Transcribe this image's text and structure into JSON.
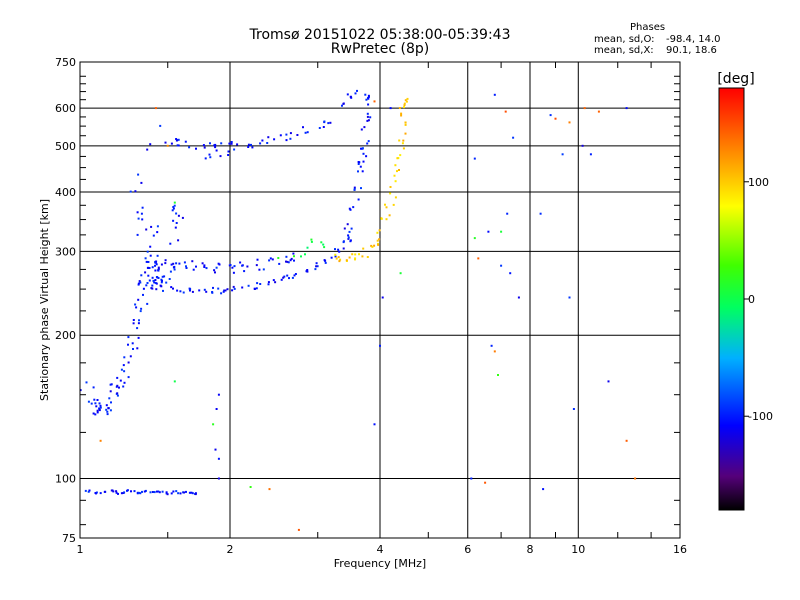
{
  "chart_data": {
    "type": "scatter",
    "title": "Tromsø 20151022 05:38:00-05:39:43",
    "subtitle": "RwPretec (8p)",
    "xlabel": "Frequency [MHz]",
    "ylabel": "Stationary phase Virtual Height [km]",
    "x_scale": "log",
    "y_scale": "log",
    "xlim": [
      1,
      16
    ],
    "ylim": [
      75,
      750
    ],
    "x_ticks": [
      1,
      2,
      4,
      6,
      8,
      10,
      16
    ],
    "x_tick_labels": [
      "1",
      "2",
      "4",
      "6",
      "8",
      "10",
      "16"
    ],
    "y_ticks": [
      75,
      100,
      200,
      300,
      400,
      500,
      600,
      750
    ],
    "y_tick_labels": [
      "75",
      "100",
      "200",
      "300",
      "400",
      "500",
      "600",
      "750"
    ],
    "x_grid": [
      1,
      2,
      4,
      6,
      8,
      10,
      16
    ],
    "y_grid": [
      75,
      100,
      200,
      300,
      400,
      500,
      600,
      750
    ],
    "x_minor_ticks": [
      1.5,
      3,
      5,
      7,
      9,
      12,
      14
    ],
    "y_minor_ticks": [
      80,
      90,
      125,
      150,
      175,
      225,
      250,
      275,
      325,
      350,
      375,
      425,
      450,
      475,
      525,
      550,
      575,
      625,
      650,
      675,
      700
    ],
    "colorbar": {
      "label": "[deg]",
      "range": [
        -180,
        180
      ],
      "ticks": [
        100,
        0,
        -100
      ],
      "tick_labels": [
        "100",
        "0",
        "-100"
      ]
    },
    "stats": {
      "title": "Phases",
      "o_label": "mean, sd,O:",
      "o_values": "-98.4, 14.0",
      "x_label": "mean, sd,X:",
      "x_values": "90.1, 18.6"
    },
    "series": [
      {
        "x": [
          1.02,
          1.05,
          1.09,
          1.13,
          1.17,
          1.2,
          1.24,
          1.28,
          1.31,
          1.35,
          1.39,
          1.42,
          1.46,
          1.5,
          1.55,
          1.6,
          1.65,
          1.7
        ],
        "y": [
          94,
          94,
          93,
          94,
          94,
          93,
          94,
          94,
          93,
          94,
          93,
          94,
          94,
          93,
          94,
          93,
          94,
          93
        ],
        "phase": -100,
        "spread": 0.006,
        "n": 3
      },
      {
        "x": [
          1.02,
          1.05,
          1.08,
          1.11,
          1.14,
          1.17,
          1.2,
          1.23,
          1.26,
          1.29,
          1.32,
          1.35,
          1.38,
          1.41
        ],
        "y": [
          160,
          145,
          140,
          138,
          142,
          150,
          158,
          172,
          180,
          200,
          220,
          250,
          270,
          280
        ],
        "phase": -100,
        "spread": 0.03,
        "n": 6
      },
      {
        "x": [
          1.28,
          1.31,
          1.34,
          1.37,
          1.4,
          1.43,
          1.46,
          1.49,
          1.52,
          1.55,
          1.58
        ],
        "y": [
          430,
          370,
          320,
          290,
          270,
          260,
          258,
          262,
          275,
          330,
          370
        ],
        "phase": -100,
        "spread": 0.03,
        "n": 5
      },
      {
        "x": [
          1.3,
          1.38,
          1.46,
          1.55,
          1.65,
          1.75,
          1.85,
          1.95,
          2.05,
          2.15,
          2.3,
          2.45,
          2.6,
          2.75,
          2.9,
          3.05,
          3.2,
          3.35,
          3.5
        ],
        "y": [
          260,
          255,
          252,
          250,
          249,
          248,
          248,
          249,
          250,
          252,
          255,
          258,
          262,
          268,
          275,
          283,
          292,
          305,
          320
        ],
        "phase": -100,
        "spread": 0.015,
        "n": 4
      },
      {
        "x": [
          1.4,
          1.5,
          1.6,
          1.7,
          1.8,
          1.9,
          2.0,
          2.1,
          2.2,
          2.35,
          2.5,
          2.65
        ],
        "y": [
          290,
          285,
          282,
          280,
          278,
          277,
          277,
          278,
          280,
          283,
          287,
          292
        ],
        "phase": -100,
        "spread": 0.025,
        "n": 4
      },
      {
        "x": [
          3.45,
          3.52,
          3.58,
          3.62,
          3.66,
          3.69,
          3.72,
          3.74,
          3.75,
          3.76
        ],
        "y": [
          330,
          360,
          390,
          420,
          450,
          480,
          510,
          550,
          590,
          630
        ],
        "phase": -100,
        "spread": 0.02,
        "n": 4
      },
      {
        "x": [
          1.5,
          1.55,
          1.6,
          1.7,
          1.8,
          1.9,
          2.0,
          2.1,
          2.2,
          2.35,
          2.5,
          2.65,
          2.8,
          2.95,
          3.1,
          3.25,
          3.4,
          3.55
        ],
        "y": [
          520,
          510,
          505,
          500,
          498,
          498,
          500,
          503,
          507,
          512,
          518,
          525,
          535,
          548,
          565,
          585,
          610,
          640
        ],
        "phase": -100,
        "spread": 0.02,
        "n": 3
      },
      {
        "x": [
          3.2,
          3.35,
          3.5,
          3.65,
          3.8,
          3.92,
          4.02,
          4.12,
          4.22,
          4.3,
          4.36,
          4.4,
          4.43,
          4.45,
          4.47
        ],
        "y": [
          290,
          290,
          292,
          295,
          300,
          310,
          330,
          355,
          385,
          420,
          460,
          500,
          540,
          580,
          620
        ],
        "phase": 100,
        "spread": 0.02,
        "n": 4
      },
      {
        "x": [
          2.5,
          2.65,
          2.8,
          2.95,
          3.1
        ],
        "y": [
          292,
          298,
          305,
          310,
          310
        ],
        "phase": 0,
        "spread": 0.03,
        "n": 2
      },
      {
        "x": [
          1.8,
          1.9,
          2.0,
          2.05,
          1.5,
          1.38,
          1.36,
          1.42
        ],
        "y": [
          470,
          480,
          490,
          460,
          500,
          600,
          440,
          330
        ],
        "phase": -100,
        "spread": 0.02,
        "n": 2
      },
      {
        "x": [
          4.0,
          4.05,
          3.9,
          6.1,
          6.6,
          7.0,
          7.2,
          7.6,
          8.4,
          8.8,
          9.3,
          10.2,
          11.5,
          4.2,
          6.2,
          6.8,
          7.4,
          9.6,
          10.6,
          12.5,
          6.7,
          7.3,
          8.5,
          9.8
        ],
        "y": [
          190,
          240,
          130,
          100,
          330,
          280,
          360,
          240,
          360,
          580,
          480,
          500,
          160,
          600,
          470,
          640,
          520,
          240,
          480,
          600,
          190,
          270,
          95,
          140
        ],
        "phase": -100,
        "spread": 0.0,
        "n": 1
      },
      {
        "x": [
          2.4,
          2.75,
          3.9,
          6.5,
          6.8,
          7.15,
          9.0,
          9.6,
          10.3,
          11.0,
          12.5,
          13.0,
          6.3,
          1.1,
          1.42,
          1.5
        ],
        "y": [
          95,
          78,
          620,
          98,
          185,
          590,
          570,
          560,
          600,
          590,
          120,
          100,
          290,
          120,
          600,
          500
        ],
        "phase": 140,
        "spread": 0.0,
        "n": 1
      },
      {
        "x": [
          1.85,
          2.2,
          1.55,
          6.9,
          4.4,
          7.0,
          1.55,
          6.2
        ],
        "y": [
          130,
          96,
          380,
          165,
          270,
          330,
          160,
          320
        ],
        "phase": 10,
        "spread": 0.0,
        "n": 1
      },
      {
        "x": [
          1.87,
          1.9,
          1.88,
          1.9,
          1.9
        ],
        "y": [
          115,
          110,
          140,
          150,
          100
        ],
        "phase": -100,
        "spread": 0.0,
        "n": 1
      }
    ]
  }
}
